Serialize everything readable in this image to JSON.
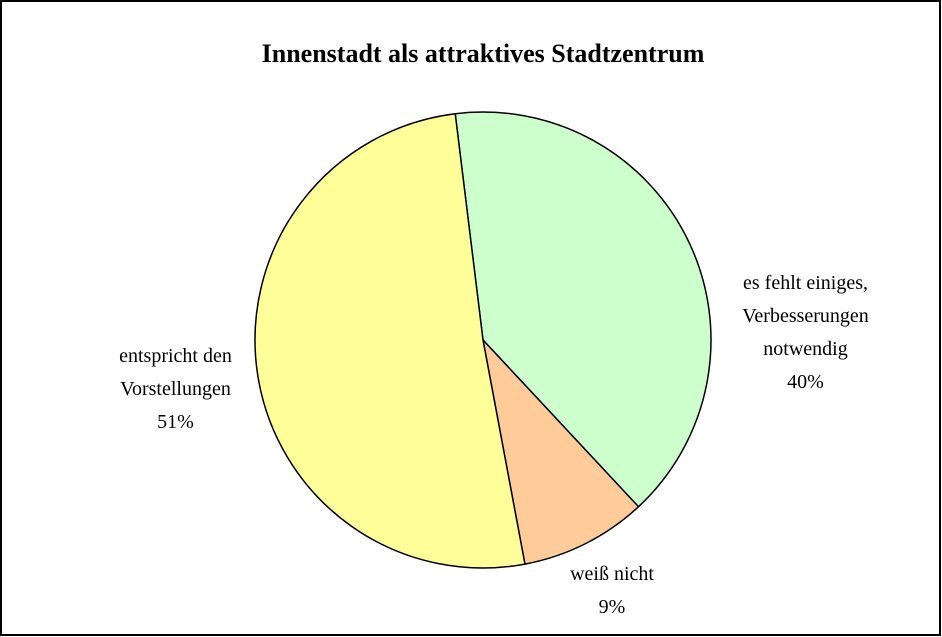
{
  "chart_data": {
    "type": "pie",
    "title": "Innenstadt als attraktives Stadtzentrum",
    "categories": [
      "es fehlt einiges, Verbesserungen notwendig",
      "weiß nicht",
      "entspricht den Vorstellungen"
    ],
    "values": [
      40,
      9,
      51
    ],
    "value_labels": [
      "40%",
      "9%",
      "51%"
    ],
    "colors": [
      "#ccffcc",
      "#ffcc99",
      "#ffff99"
    ]
  }
}
